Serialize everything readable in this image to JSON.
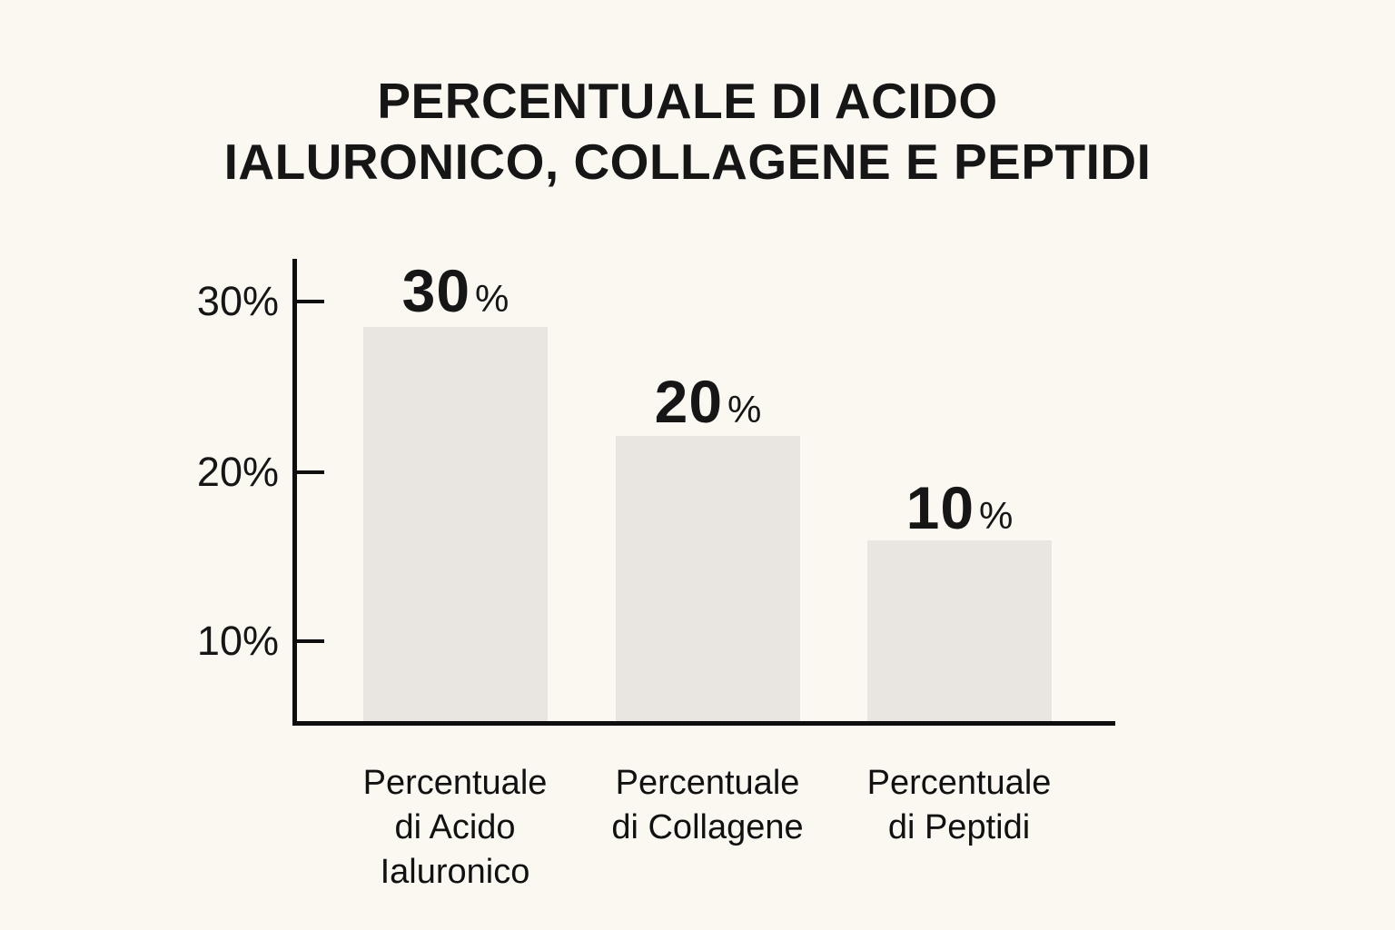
{
  "chart_data": {
    "type": "bar",
    "title": "PERCENTUALE DI ACIDO IALURONICO, COLLAGENE E PEPTIDI",
    "title_lines": [
      "PERCENTUALE DI ACIDO",
      "IALURONICO, COLLAGENE E PEPTIDI"
    ],
    "categories": [
      "Percentuale di Acido Ialuronico",
      "Percentuale di Collagene",
      "Percentuale di Peptidi"
    ],
    "values": [
      30,
      20,
      10
    ],
    "unit": "%",
    "bars": [
      {
        "value": 30,
        "value_label": "30",
        "suffix": "%",
        "category_lines": [
          "Percentuale",
          "di Acido",
          "Ialuronico"
        ]
      },
      {
        "value": 20,
        "value_label": "20",
        "suffix": "%",
        "category_lines": [
          "Percentuale",
          "di Collagene"
        ]
      },
      {
        "value": 10,
        "value_label": "10",
        "suffix": "%",
        "category_lines": [
          "Percentuale",
          "di Peptidi"
        ]
      }
    ],
    "y_axis": {
      "ticks": [
        {
          "label": "30%",
          "value": 30
        },
        {
          "label": "20%",
          "value": 20
        },
        {
          "label": "10%",
          "value": 10
        }
      ]
    },
    "xlabel": "",
    "ylabel": "",
    "grid": false,
    "legend": "none",
    "colors": {
      "background": "#faf8f1",
      "bar": "#e9e6e1",
      "text": "#161616",
      "axis": "#0e0e0e"
    }
  }
}
